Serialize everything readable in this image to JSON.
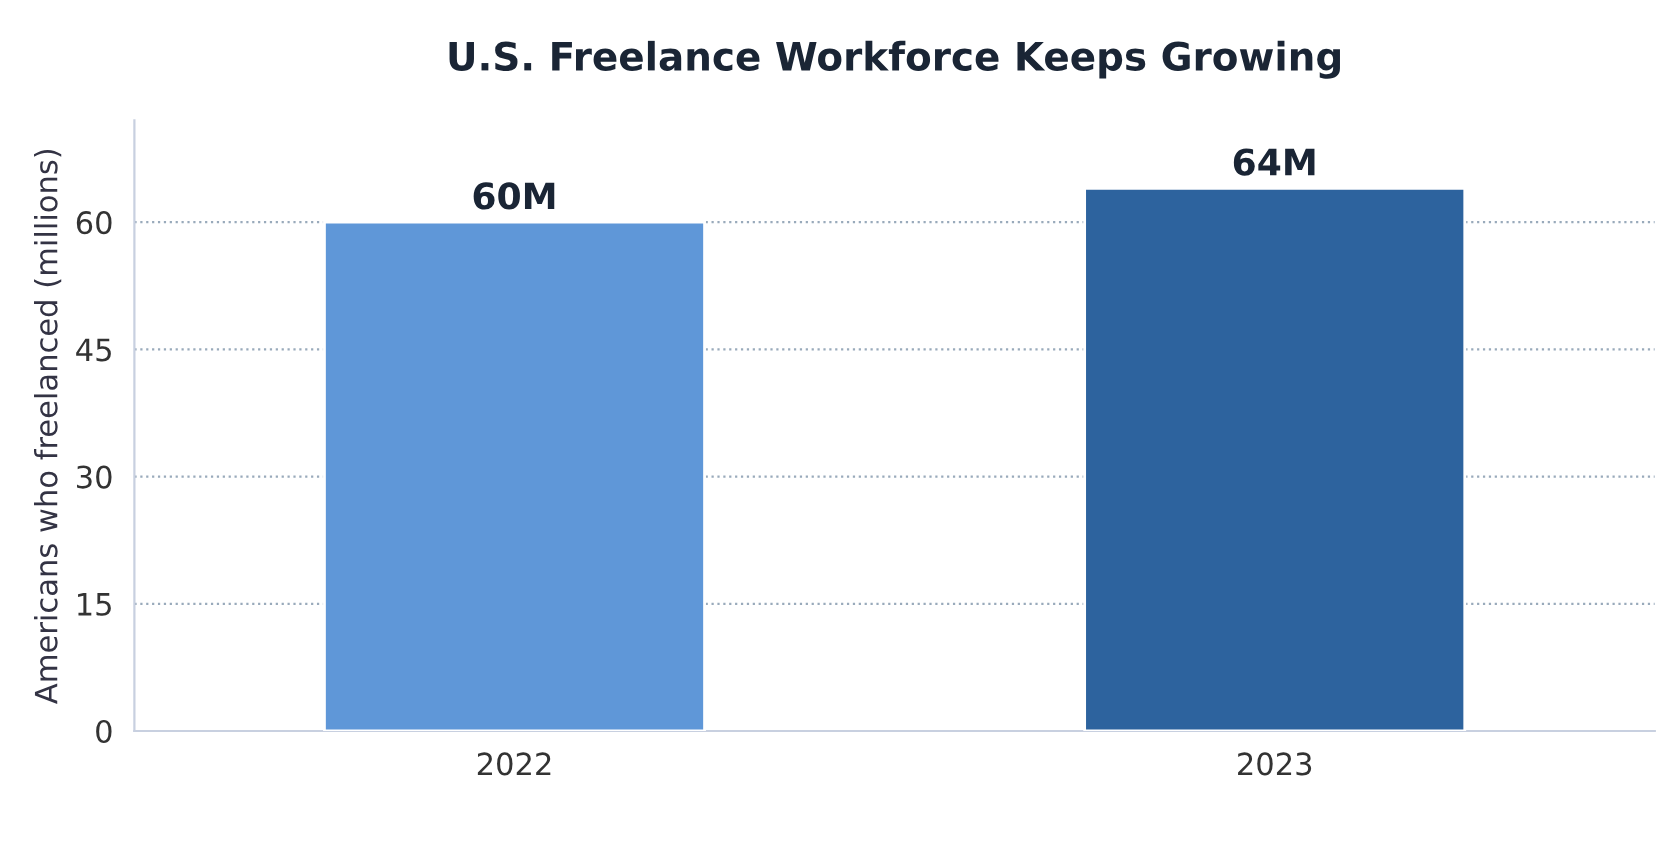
{
  "chart_data": {
    "type": "bar",
    "title": "U.S. Freelance Workforce Keeps Growing",
    "ylabel": "Americans who freelanced (millions)",
    "categories": [
      "2022",
      "2023"
    ],
    "values": [
      60,
      64
    ],
    "colors": [
      "#5f97d8",
      "#2d639e"
    ],
    "value_labels": [
      "60M",
      "64M"
    ],
    "ylim": [
      0,
      72
    ],
    "yticks": [
      0,
      15,
      30,
      45,
      60
    ],
    "grid": "y"
  }
}
